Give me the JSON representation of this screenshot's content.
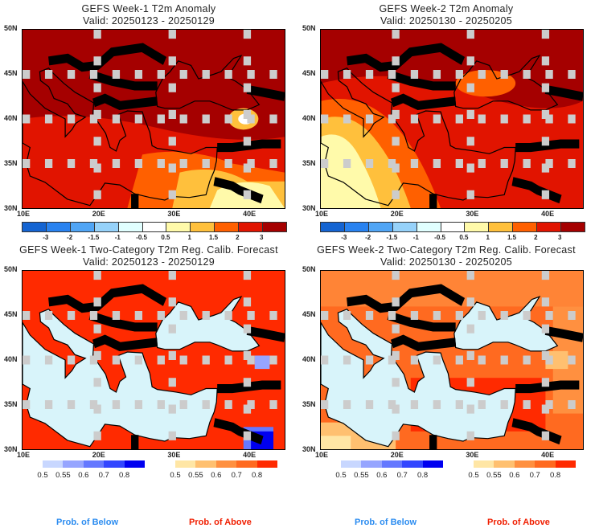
{
  "panels": [
    {
      "title": "GEFS Week-1 T2m Anomaly",
      "valid": "Valid: 20250123 - 20250129",
      "kind": "anom",
      "variant": 1
    },
    {
      "title": "GEFS Week-2 T2m Anomaly",
      "valid": "Valid: 20250130 - 20250205",
      "kind": "anom",
      "variant": 2
    },
    {
      "title": "GEFS Week-1 Two-Category T2m Reg. Calib. Forecast",
      "valid": "Valid: 20250123 - 20250129",
      "kind": "prob",
      "variant": 1
    },
    {
      "title": "GEFS Week-2 Two-Category T2m Reg. Calib. Forecast",
      "valid": "Valid: 20250130 - 20250205",
      "kind": "prob",
      "variant": 2
    }
  ],
  "axes": {
    "lon_labels": [
      "10E",
      "20E",
      "30E",
      "40E"
    ],
    "lat_labels": [
      "50N",
      "45N",
      "40N",
      "35N",
      "30N"
    ]
  },
  "anomaly_colorbar": {
    "colors": [
      "#1464d2",
      "#2882f0",
      "#50a5f5",
      "#96d2fa",
      "#e1ffff",
      "#ffffff",
      "#fffaaa",
      "#ffc03c",
      "#ff6000",
      "#e11400",
      "#a50000"
    ],
    "labels": [
      "-3",
      "-2",
      "-1.5",
      "-1",
      "-0.5",
      "0.5",
      "1",
      "1.5",
      "2",
      "3"
    ]
  },
  "prob_below": {
    "colors": [
      "#c8d7ff",
      "#96a5ff",
      "#6478ff",
      "#3246ff",
      "#0000f0"
    ],
    "labels": [
      "0.5",
      "0.55",
      "0.6",
      "0.7",
      "0.8"
    ],
    "caption": "Prob. of Below",
    "caption_color": "#2b8cf0"
  },
  "prob_above": {
    "colors": [
      "#ffe6a5",
      "#ffc070",
      "#ff9040",
      "#ff6a20",
      "#ff2a00"
    ],
    "labels": [
      "0.5",
      "0.55",
      "0.6",
      "0.7",
      "0.8"
    ],
    "caption": "Prob. of Above",
    "caption_color": "#f01e00"
  }
}
